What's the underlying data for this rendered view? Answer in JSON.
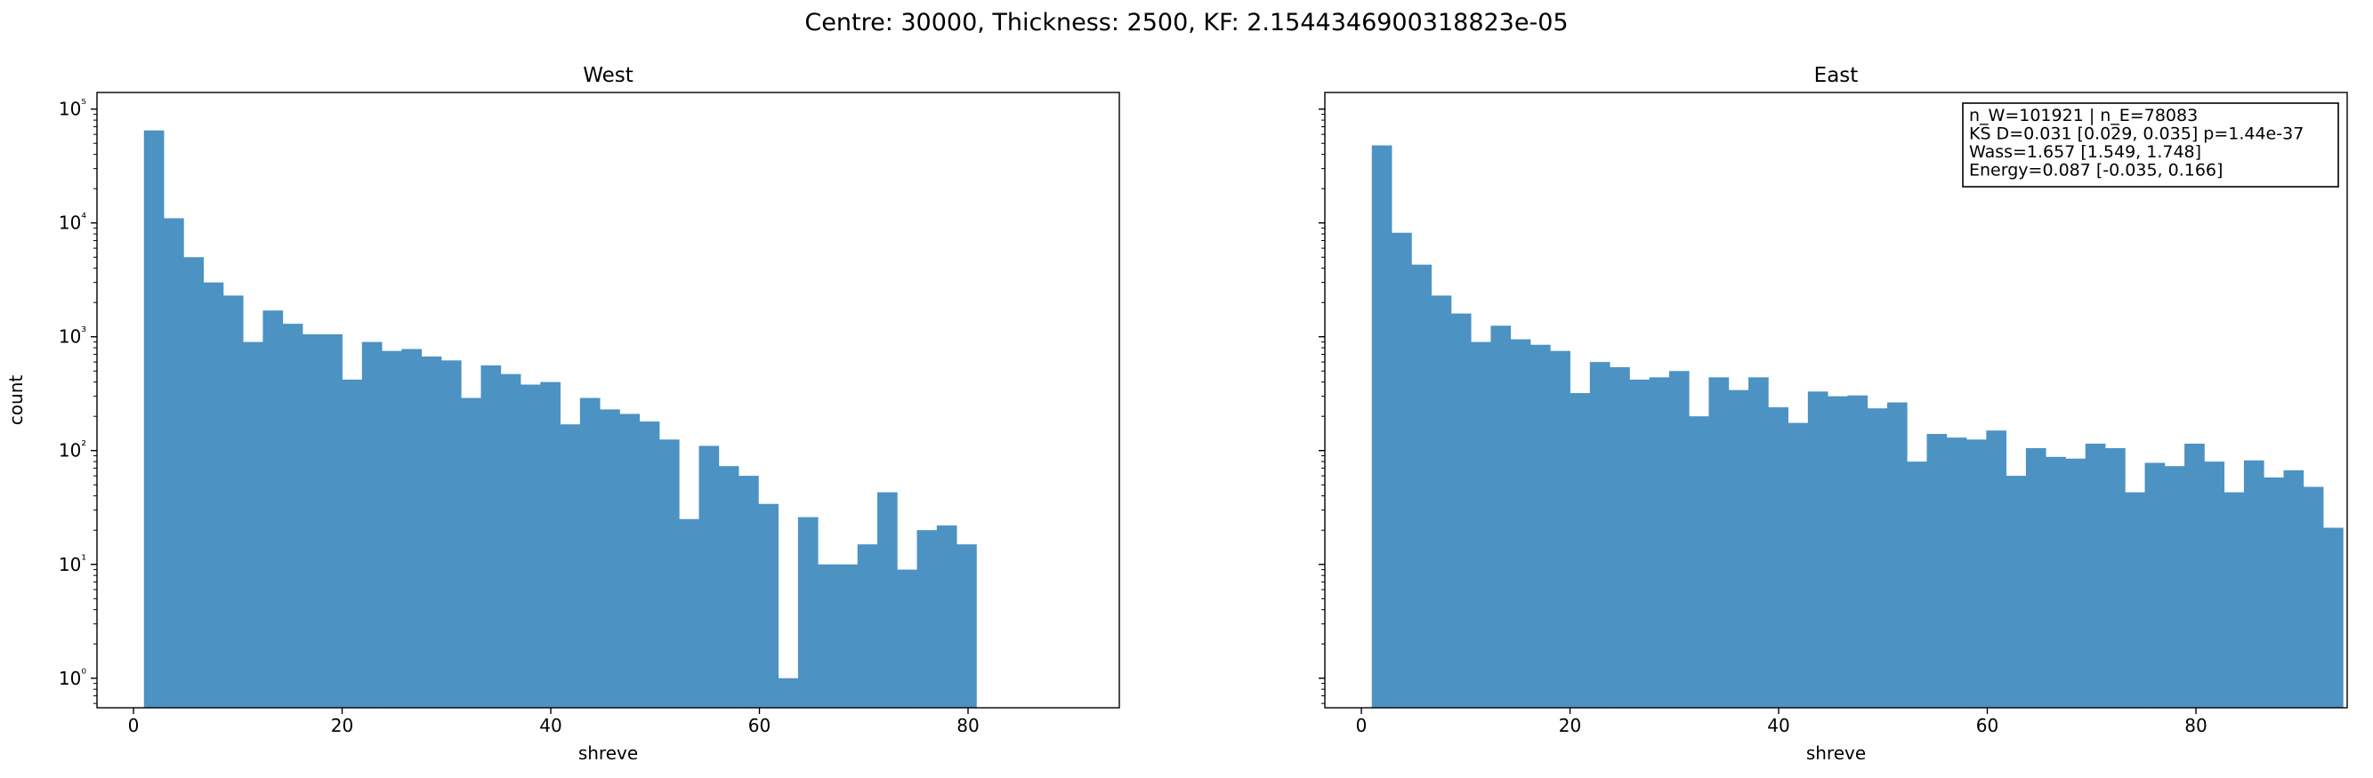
{
  "suptitle": "Centre: 30000, Thickness: 2500, KF: 2.1544346900318823e-05",
  "colors": {
    "bar": "#4c92c3",
    "axis": "#000000",
    "background": "#ffffff"
  },
  "chart_data": [
    {
      "type": "bar",
      "title": "West",
      "xlabel": "shreve",
      "ylabel": "count",
      "yscale": "log",
      "xlim": [
        -3.5,
        94.5
      ],
      "ylim": [
        0.55,
        140000
      ],
      "xticks": [
        "0",
        "20",
        "40",
        "60",
        "80"
      ],
      "yticks": [
        "10⁰",
        "10¹",
        "10²",
        "10³",
        "10⁴",
        "10⁵"
      ],
      "bin_start": 1,
      "bin_width": 1.9,
      "values": [
        65000,
        11000,
        5000,
        3000,
        2300,
        900,
        1700,
        1300,
        1050,
        1050,
        420,
        900,
        750,
        780,
        670,
        620,
        290,
        560,
        470,
        380,
        400,
        170,
        290,
        230,
        210,
        180,
        125,
        25,
        110,
        73,
        60,
        34,
        1,
        26,
        10,
        10,
        15,
        43,
        9,
        20,
        22,
        15
      ],
      "legend": "none",
      "grid": false
    },
    {
      "type": "bar",
      "title": "East",
      "xlabel": "shreve",
      "ylabel": "",
      "yscale": "log",
      "xlim": [
        -3.5,
        94.5
      ],
      "ylim": [
        0.55,
        140000
      ],
      "xticks": [
        "0",
        "20",
        "40",
        "60",
        "80"
      ],
      "yticks": [],
      "bin_start": 1,
      "bin_width": 1.9,
      "values": [
        48000,
        8200,
        4300,
        2300,
        1600,
        900,
        1250,
        950,
        850,
        750,
        320,
        600,
        540,
        420,
        440,
        500,
        200,
        440,
        340,
        440,
        240,
        175,
        330,
        300,
        305,
        235,
        265,
        80,
        140,
        130,
        125,
        150,
        60,
        105,
        88,
        85,
        115,
        105,
        43,
        78,
        73,
        115,
        80,
        43,
        82,
        58,
        67,
        48,
        21
      ],
      "legend": "none",
      "grid": false,
      "annotation": [
        "n_W=101921 | n_E=78083",
        "KS D=0.031 [0.029, 0.035]  p=1.44e-37",
        "Wass=1.657 [1.549, 1.748]",
        "Energy=0.087 [-0.035, 0.166]"
      ]
    }
  ]
}
